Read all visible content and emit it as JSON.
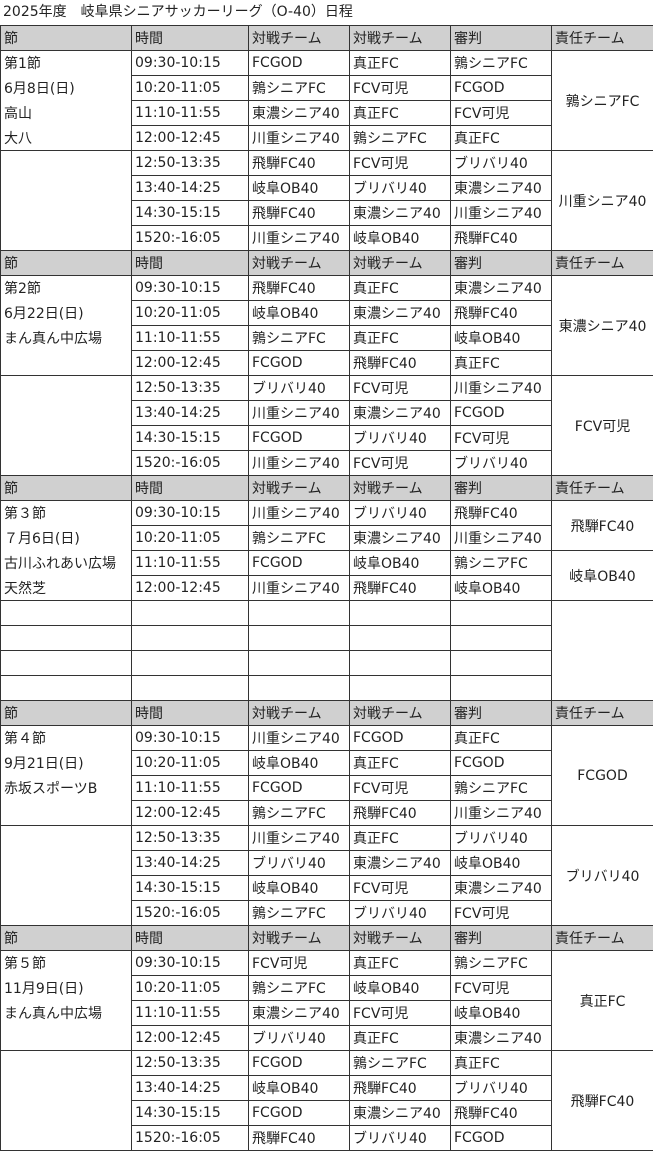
{
  "title": "2025年度　岐阜県シニアサッカーリーグ（O-40）日程",
  "headers": [
    "節",
    "時間",
    "対戦チーム",
    "対戦チーム",
    "審判",
    "責任チーム"
  ],
  "colors": {
    "header_bg": "#d0d0d0",
    "border": "#333333"
  },
  "blocks": [
    {
      "rows": [
        [
          "第1節",
          "09:30-10:15",
          "FCGOD",
          "真正FC",
          "鶉シニアFC"
        ],
        [
          "6月8日(日)",
          "10:20-11:05",
          "鶉シニアFC",
          "FCV可児",
          "FCGOD"
        ],
        [
          "高山",
          "11:10-11:55",
          "東濃シニア40",
          "真正FC",
          "FCV可児"
        ],
        [
          "大八",
          "12:00-12:45",
          "川重シニア40",
          "鶉シニアFC",
          "真正FC"
        ],
        [
          "",
          "12:50-13:35",
          "飛騨FC40",
          "FCV可児",
          "ブリバリ40"
        ],
        [
          "",
          "13:40-14:25",
          "岐阜OB40",
          "ブリバリ40",
          "東濃シニア40"
        ],
        [
          "",
          "14:30-15:15",
          "飛騨FC40",
          "東濃シニア40",
          "川重シニア40"
        ],
        [
          "",
          "1520:-16:05",
          "川重シニア40",
          "岐阜OB40",
          "飛騨FC40"
        ]
      ],
      "responsible": [
        {
          "label": "鶉シニアFC",
          "span": 4
        },
        {
          "label": "川重シニア40",
          "span": 4
        }
      ]
    },
    {
      "rows": [
        [
          "第2節",
          "09:30-10:15",
          "飛騨FC40",
          "真正FC",
          "東濃シニア40"
        ],
        [
          "6月22日(日)",
          "10:20-11:05",
          "岐阜OB40",
          "東濃シニア40",
          "飛騨FC40"
        ],
        [
          "まん真ん中広場",
          "11:10-11:55",
          "鶉シニアFC",
          "真正FC",
          "岐阜OB40"
        ],
        [
          "",
          "12:00-12:45",
          "FCGOD",
          "飛騨FC40",
          "真正FC"
        ],
        [
          "",
          "12:50-13:35",
          "ブリバリ40",
          "FCV可児",
          "川重シニア40"
        ],
        [
          "",
          "13:40-14:25",
          "川重シニア40",
          "東濃シニア40",
          "FCGOD"
        ],
        [
          "",
          "14:30-15:15",
          "FCGOD",
          "ブリバリ40",
          "FCV可児"
        ],
        [
          "",
          "1520:-16:05",
          "川重シニア40",
          "FCV可児",
          "ブリバリ40"
        ]
      ],
      "responsible": [
        {
          "label": "東濃シニア40",
          "span": 4
        },
        {
          "label": "FCV可児",
          "span": 4
        }
      ]
    },
    {
      "rows": [
        [
          "第３節",
          "09:30-10:15",
          "川重シニア40",
          "ブリバリ40",
          "飛騨FC40"
        ],
        [
          "７月6日(日)",
          "10:20-11:05",
          "鶉シニアFC",
          "東濃シニア40",
          "川重シニア40"
        ],
        [
          "古川ふれあい広場",
          "11:10-11:55",
          "FCGOD",
          "岐阜OB40",
          "鶉シニアFC"
        ],
        [
          "天然芝",
          "12:00-12:45",
          "川重シニア40",
          "飛騨FC40",
          "岐阜OB40"
        ],
        [
          "",
          "",
          "",
          "",
          ""
        ],
        [
          "",
          "",
          "",
          "",
          ""
        ],
        [
          "",
          "",
          "",
          "",
          ""
        ],
        [
          "",
          "",
          "",
          "",
          ""
        ]
      ],
      "responsible": [
        {
          "label": "飛騨FC40",
          "span": 2
        },
        {
          "label": "岐阜OB40",
          "span": 2
        },
        {
          "label": "",
          "span": 4
        }
      ]
    },
    {
      "rows": [
        [
          "第４節",
          "09:30-10:15",
          "川重シニア40",
          "FCGOD",
          "真正FC"
        ],
        [
          "9月21日(日)",
          "10:20-11:05",
          "岐阜OB40",
          "真正FC",
          "FCGOD"
        ],
        [
          "赤坂スポーツB",
          "11:10-11:55",
          "FCGOD",
          "FCV可児",
          "鶉シニアFC"
        ],
        [
          "",
          "12:00-12:45",
          "鶉シニアFC",
          "飛騨FC40",
          "川重シニア40"
        ],
        [
          "",
          "12:50-13:35",
          "川重シニア40",
          "真正FC",
          "ブリバリ40"
        ],
        [
          "",
          "13:40-14:25",
          "ブリバリ40",
          "東濃シニア40",
          "岐阜OB40"
        ],
        [
          "",
          "14:30-15:15",
          "岐阜OB40",
          "FCV可児",
          "東濃シニア40"
        ],
        [
          "",
          "1520:-16:05",
          "鶉シニアFC",
          "ブリバリ40",
          "FCV可児"
        ]
      ],
      "responsible": [
        {
          "label": "FCGOD",
          "span": 4
        },
        {
          "label": "ブリバリ40",
          "span": 4
        }
      ]
    },
    {
      "rows": [
        [
          "第５節",
          "09:30-10:15",
          "FCV可児",
          "真正FC",
          "鶉シニアFC"
        ],
        [
          "11月9日(日)",
          "10:20-11:05",
          "鶉シニアFC",
          "岐阜OB40",
          "FCV可児"
        ],
        [
          "まん真ん中広場",
          "11:10-11:55",
          "東濃シニア40",
          "FCV可児",
          "岐阜OB40"
        ],
        [
          "",
          "12:00-12:45",
          "ブリバリ40",
          "真正FC",
          "東濃シニア40"
        ],
        [
          "",
          "12:50-13:35",
          "FCGOD",
          "鶉シニアFC",
          "真正FC"
        ],
        [
          "",
          "13:40-14:25",
          "岐阜OB40",
          "飛騨FC40",
          "ブリバリ40"
        ],
        [
          "",
          "14:30-15:15",
          "FCGOD",
          "東濃シニア40",
          "飛騨FC40"
        ],
        [
          "",
          "1520:-16:05",
          "飛騨FC40",
          "ブリバリ40",
          "FCGOD"
        ]
      ],
      "responsible": [
        {
          "label": "真正FC",
          "span": 4
        },
        {
          "label": "飛騨FC40",
          "span": 4
        }
      ]
    }
  ]
}
